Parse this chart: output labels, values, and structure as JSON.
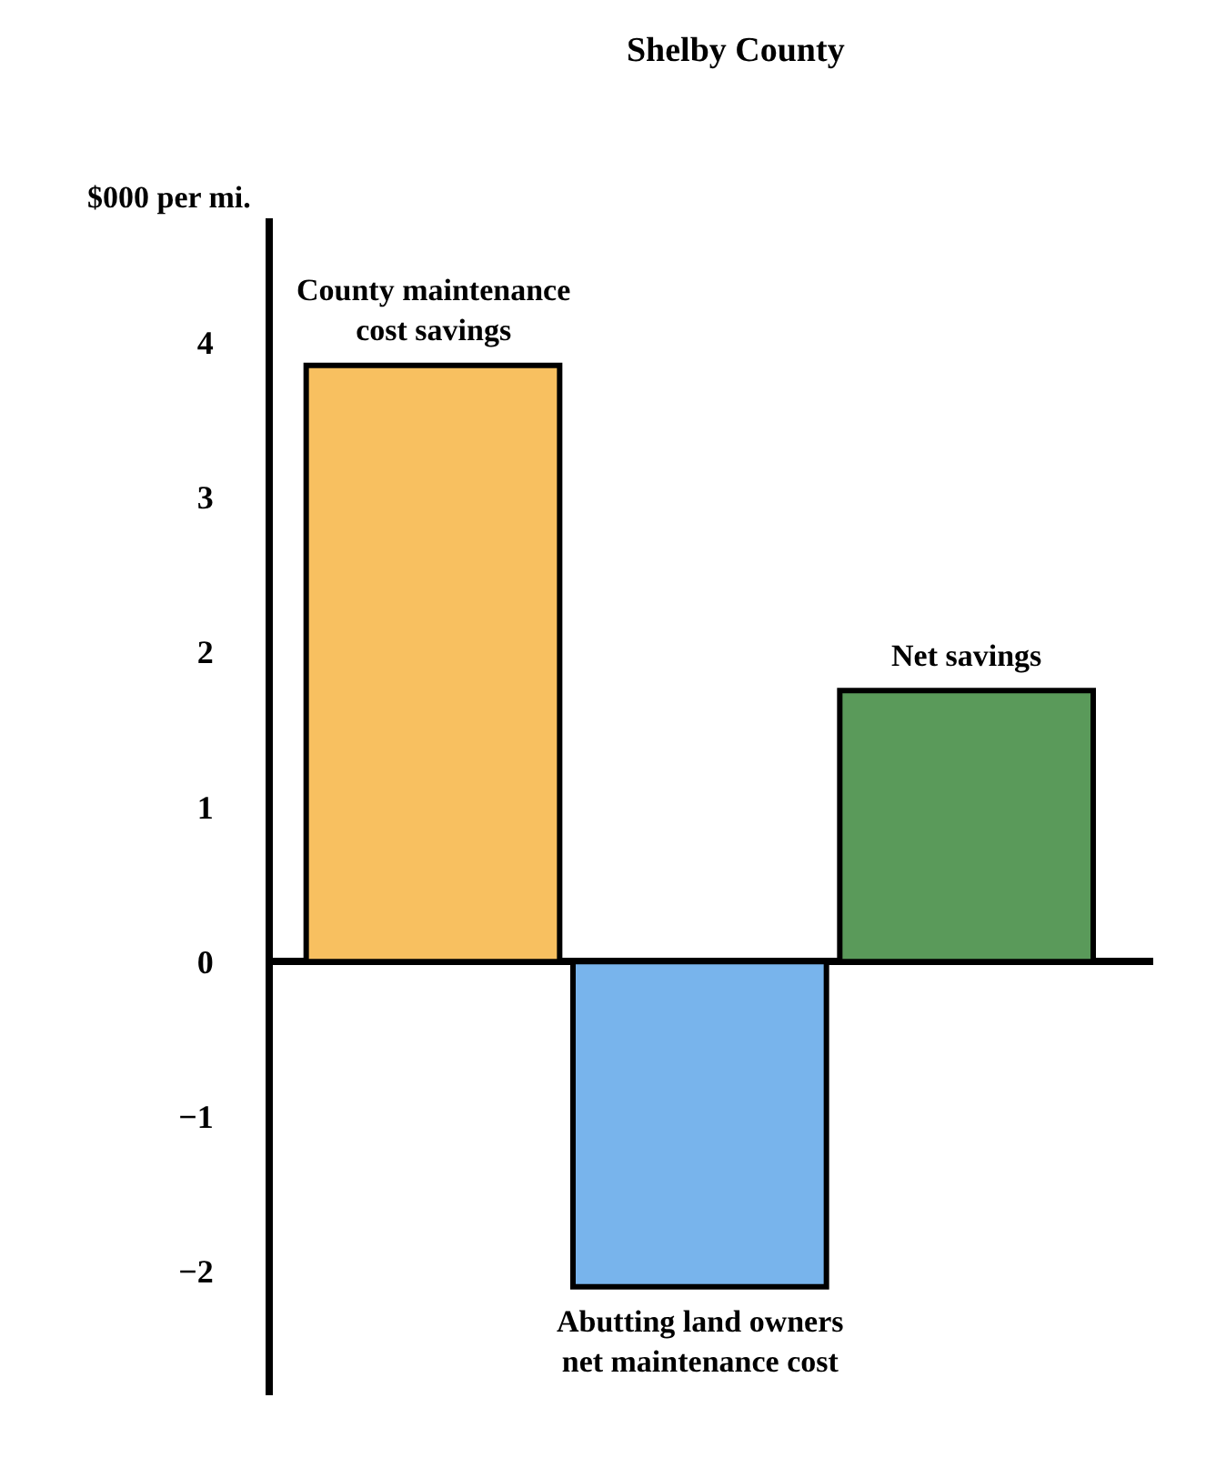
{
  "chart_data": {
    "type": "bar",
    "title": "Shelby County",
    "ylabel": "$000 per mi.",
    "categories": [
      "County maintenance cost savings",
      "Abutting land owners net maintenance cost",
      "Net savings"
    ],
    "values": [
      3.85,
      -2.1,
      1.75
    ],
    "colors": [
      "#f8c060",
      "#78b4ec",
      "#5a9a5a"
    ],
    "ylim": [
      -2.8,
      4.8
    ],
    "yticks": [
      -2,
      -1,
      0,
      1,
      2,
      3,
      4
    ],
    "legend": false,
    "tick_labels": "y"
  }
}
